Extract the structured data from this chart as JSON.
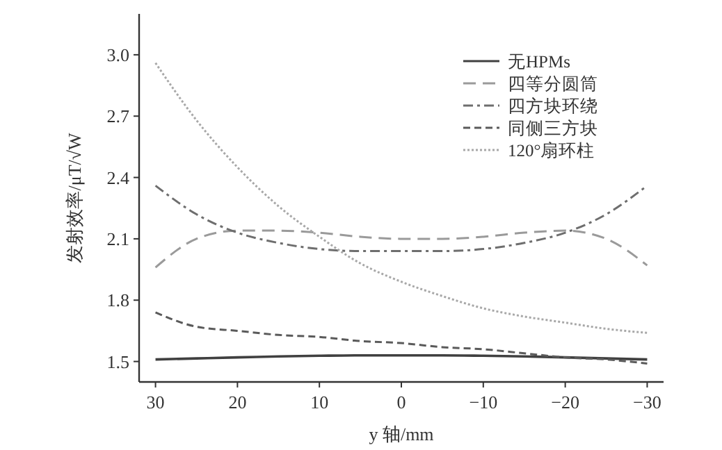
{
  "chart_data": {
    "type": "line",
    "xlabel": "y 轴/mm",
    "ylabel": "发射效率/μT/√W",
    "x": [
      30,
      25,
      20,
      15,
      10,
      5,
      0,
      -5,
      -10,
      -15,
      -20,
      -25,
      -30
    ],
    "xlim": [
      32,
      -32
    ],
    "xticks": [
      30,
      20,
      10,
      0,
      {
        "value": -10,
        "label": "−10"
      },
      {
        "value": -20,
        "label": "−20"
      },
      {
        "value": -30,
        "label": "−30"
      }
    ],
    "ylim": [
      1.4,
      3.2
    ],
    "yticks": [
      {
        "value": 1.5,
        "label": "1.5"
      },
      {
        "value": 1.8,
        "label": "1.8"
      },
      {
        "value": 2.1,
        "label": "2.1"
      },
      {
        "value": 2.4,
        "label": "2.4"
      },
      {
        "value": 2.7,
        "label": "2.7"
      },
      {
        "value": 3.0,
        "label": "3.0"
      }
    ],
    "legend": "top right",
    "grid": false,
    "marker": "none",
    "series": [
      {
        "name": "无HPMs",
        "color": "#404040",
        "line_style": "solid",
        "values": [
          1.51,
          1.515,
          1.52,
          1.525,
          1.528,
          1.53,
          1.53,
          1.53,
          1.528,
          1.525,
          1.52,
          1.515,
          1.51
        ]
      },
      {
        "name": "四等分圆筒",
        "color": "#9a9a9a",
        "line_style": "longdash",
        "values": [
          1.96,
          2.1,
          2.14,
          2.14,
          2.13,
          2.11,
          2.1,
          2.1,
          2.11,
          2.13,
          2.14,
          2.1,
          1.97
        ]
      },
      {
        "name": "四方块环绕",
        "color": "#6e6e6e",
        "line_style": "dashdot",
        "values": [
          2.36,
          2.22,
          2.13,
          2.08,
          2.05,
          2.04,
          2.04,
          2.04,
          2.05,
          2.08,
          2.13,
          2.22,
          2.36
        ]
      },
      {
        "name": "同侧三方块",
        "color": "#5a5a5a",
        "line_style": "dashed",
        "values": [
          1.74,
          1.67,
          1.65,
          1.63,
          1.62,
          1.6,
          1.59,
          1.57,
          1.56,
          1.54,
          1.52,
          1.51,
          1.49
        ]
      },
      {
        "name": "120°扇环柱",
        "color": "#a8a8a8",
        "line_style": "dotted",
        "values": [
          2.96,
          2.68,
          2.45,
          2.26,
          2.11,
          1.98,
          1.89,
          1.82,
          1.76,
          1.72,
          1.69,
          1.66,
          1.64
        ]
      }
    ]
  }
}
